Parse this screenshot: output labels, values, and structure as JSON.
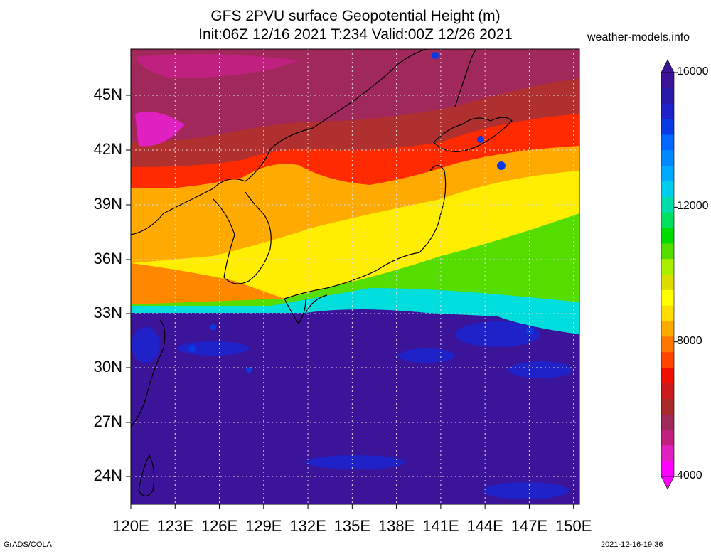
{
  "header": {
    "title_line1": "GFS 2PVU surface Geopotential Height (m)",
    "title_line2": "Init:06Z 12/16 2021 T:234 Valid:00Z 12/26 2021",
    "site": "weather-models.info"
  },
  "map": {
    "lat_labels": [
      "45N",
      "42N",
      "39N",
      "36N",
      "33N",
      "30N",
      "27N",
      "24N"
    ],
    "lon_labels": [
      "120E",
      "123E",
      "126E",
      "129E",
      "132E",
      "135E",
      "138E",
      "141E",
      "144E",
      "147E",
      "150E"
    ],
    "grid": "dotted",
    "field": "2PVU surface geopotential height",
    "bands_north_to_south": [
      {
        "region": "far north",
        "value_m": 4500,
        "color": "#a0285a"
      },
      {
        "region": "north",
        "value_m": 5500,
        "color": "#b03030"
      },
      {
        "region": "jet boundary",
        "value_m": 7500,
        "color": "#ff2a00"
      },
      {
        "region": "mid",
        "value_m": 8500,
        "color": "#ffaa00"
      },
      {
        "region": "central Japan",
        "value_m": 9500,
        "color": "#ffff00"
      },
      {
        "region": "east mid",
        "value_m": 11000,
        "color": "#66dd00"
      },
      {
        "region": "east edge",
        "value_m": 12500,
        "color": "#00dddd"
      },
      {
        "region": "south",
        "value_m": 16000,
        "color": "#3c1499"
      }
    ]
  },
  "colorbar": {
    "labels": [
      "16000",
      "12000",
      "8000",
      "4000"
    ],
    "max": 16000,
    "min": 4000,
    "colors_top_to_bottom": [
      "#3c1499",
      "#2a1aa8",
      "#1e22c8",
      "#0a3ae6",
      "#0066ff",
      "#0088ff",
      "#00aaff",
      "#00ccee",
      "#00ddaa",
      "#00e060",
      "#00dd00",
      "#55dd00",
      "#aaee00",
      "#dddd00",
      "#ffff00",
      "#ffdd00",
      "#ffaa00",
      "#ff7700",
      "#ff4400",
      "#ee1100",
      "#cc1a1a",
      "#aa2a2a",
      "#a0285a",
      "#c02080",
      "#e020c0",
      "#ff00ff"
    ]
  },
  "footer": {
    "left": "GrADS/COLA",
    "right": "2021-12-16-19:36"
  }
}
